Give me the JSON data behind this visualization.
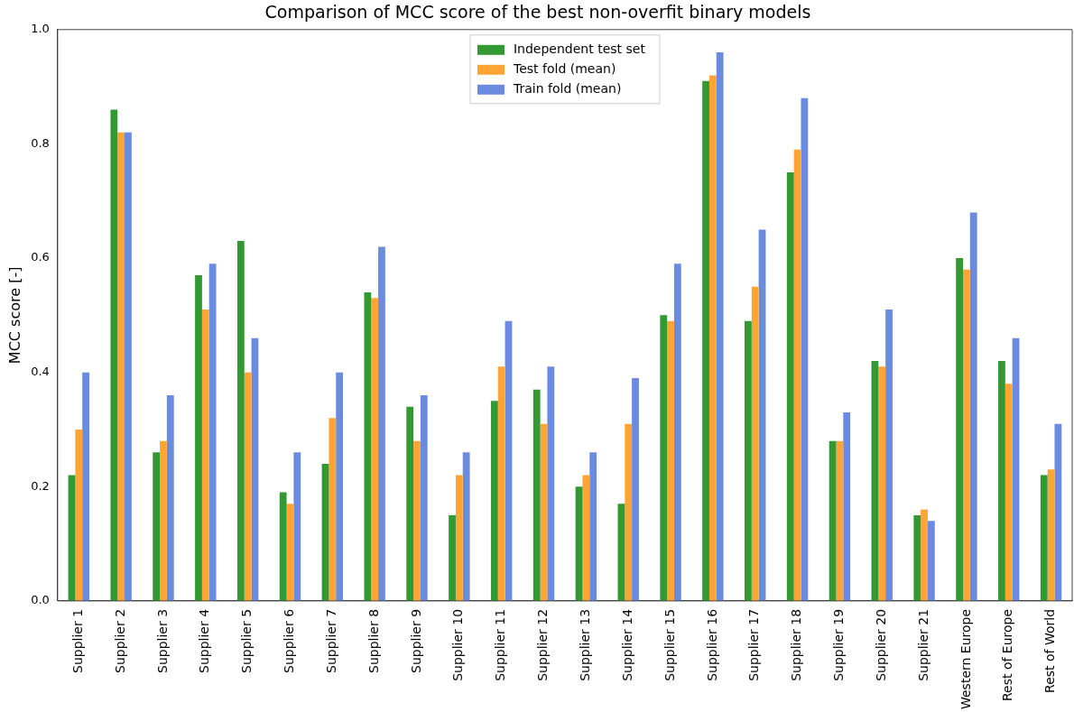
{
  "chart_data": {
    "type": "bar",
    "title": "Comparison of MCC score of the best non-overfit binary models",
    "ylabel": "MCC score [-]",
    "categories": [
      "Supplier 1",
      "Supplier 2",
      "Supplier 3",
      "Supplier 4",
      "Supplier 5",
      "Supplier 6",
      "Supplier 7",
      "Supplier 8",
      "Supplier 9",
      "Supplier 10",
      "Supplier 11",
      "Supplier 12",
      "Supplier 13",
      "Supplier 14",
      "Supplier 15",
      "Supplier 16",
      "Supplier 17",
      "Supplier 18",
      "Supplier 19",
      "Supplier 20",
      "Supplier 21",
      "Western Europe",
      "Rest of Europe",
      "Rest of World"
    ],
    "series": [
      {
        "name": "Independent test set",
        "color": "#339933",
        "values": [
          0.22,
          0.86,
          0.26,
          0.57,
          0.63,
          0.19,
          0.24,
          0.54,
          0.34,
          0.15,
          0.35,
          0.37,
          0.2,
          0.17,
          0.5,
          0.91,
          0.49,
          0.75,
          0.28,
          0.42,
          0.15,
          0.6,
          0.42,
          0.22
        ]
      },
      {
        "name": "Test fold (mean)",
        "color": "#ffa533",
        "values": [
          0.3,
          0.82,
          0.28,
          0.51,
          0.4,
          0.17,
          0.32,
          0.53,
          0.28,
          0.22,
          0.41,
          0.31,
          0.22,
          0.31,
          0.49,
          0.92,
          0.55,
          0.79,
          0.28,
          0.41,
          0.16,
          0.58,
          0.38,
          0.23
        ]
      },
      {
        "name": "Train fold (mean)",
        "color": "#6a8be0",
        "values": [
          0.4,
          0.82,
          0.36,
          0.59,
          0.46,
          0.26,
          0.4,
          0.62,
          0.36,
          0.26,
          0.49,
          0.41,
          0.26,
          0.39,
          0.59,
          0.96,
          0.65,
          0.88,
          0.33,
          0.51,
          0.14,
          0.68,
          0.46,
          0.31
        ]
      }
    ],
    "ylim": [
      0,
      1
    ],
    "yticks": [
      {
        "value": 0,
        "label": "0.0"
      },
      0.2,
      0.4,
      0.6,
      0.8,
      {
        "value": 1,
        "label": "1.0"
      }
    ],
    "grid": false,
    "legend": "top"
  }
}
